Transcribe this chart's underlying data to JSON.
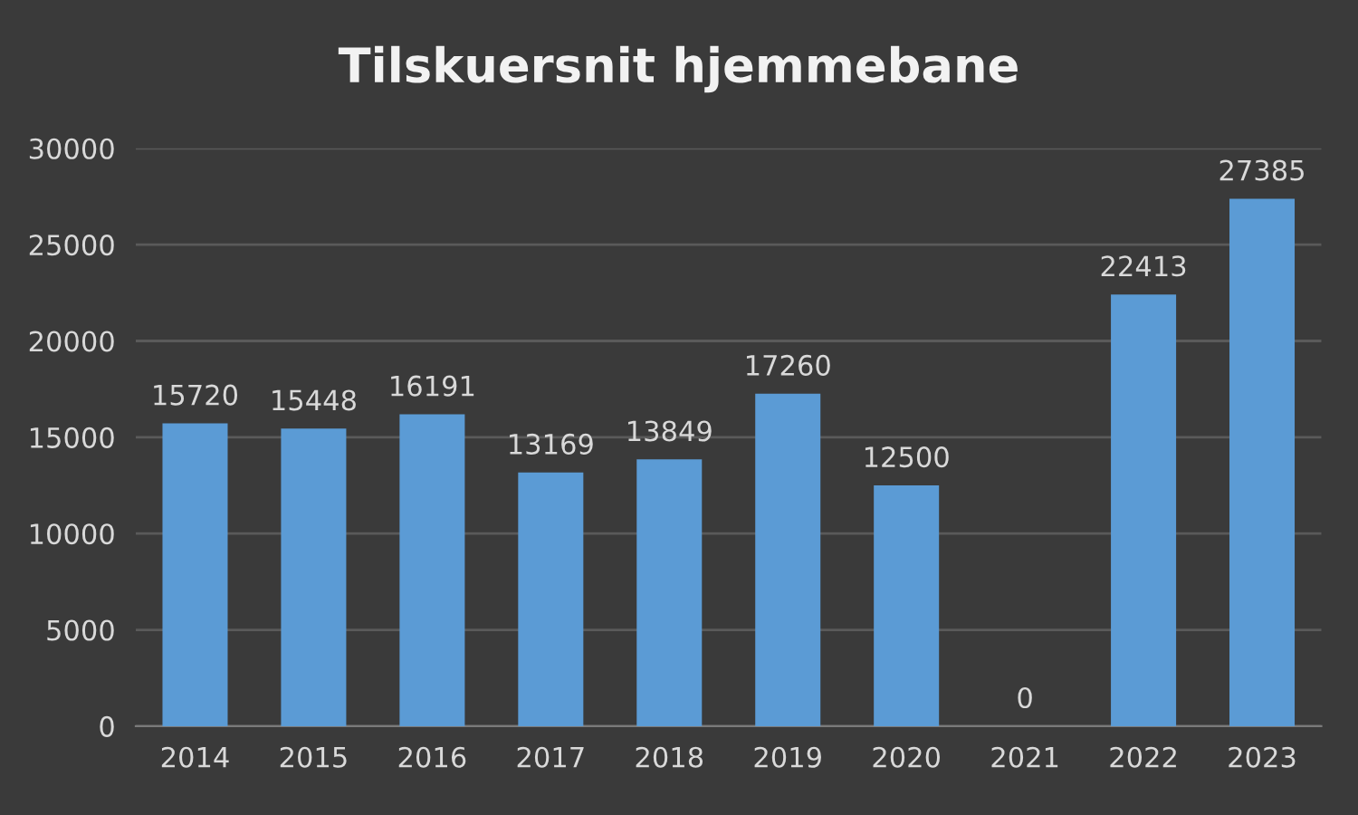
{
  "chart_data": {
    "type": "bar",
    "title": "Tilskuersnit hjemmebane",
    "categories": [
      "2014",
      "2015",
      "2016",
      "2017",
      "2018",
      "2019",
      "2020",
      "2021",
      "2022",
      "2023"
    ],
    "series": [
      {
        "color": "#5b9bd5",
        "values": [
          15720,
          15448,
          16191,
          13169,
          13849,
          17260,
          12500,
          0,
          22413,
          27385
        ]
      }
    ],
    "ylim": [
      0,
      30000
    ],
    "yticks": [
      0,
      5000,
      10000,
      15000,
      20000,
      25000,
      30000
    ],
    "grid": "y",
    "data_labels": true
  }
}
